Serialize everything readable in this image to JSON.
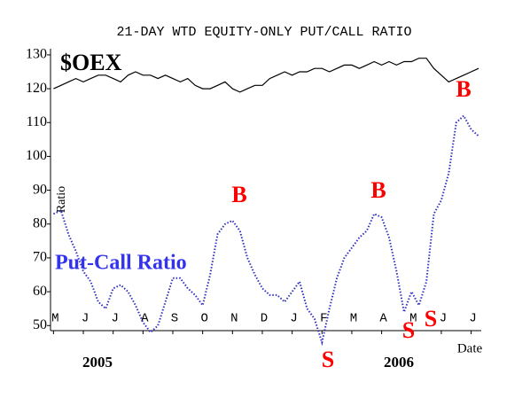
{
  "chart_data": {
    "type": "line",
    "title": "21-DAY WTD EQUITY-ONLY PUT/CALL RATIO",
    "ylabel": "Ratio",
    "xlabel": "Date",
    "x": [
      0,
      0.25,
      0.5,
      0.75,
      1,
      1.25,
      1.5,
      1.75,
      2,
      2.25,
      2.5,
      2.75,
      3,
      3.25,
      3.5,
      3.75,
      4,
      4.25,
      4.5,
      4.75,
      5,
      5.25,
      5.5,
      5.75,
      6,
      6.25,
      6.5,
      6.75,
      7,
      7.25,
      7.5,
      7.75,
      8,
      8.25,
      8.5,
      8.75,
      9,
      9.25,
      9.5,
      9.75,
      10,
      10.25,
      10.5,
      10.75,
      11,
      11.25,
      11.5,
      11.75,
      12,
      12.25,
      12.5,
      12.75,
      13,
      13.25,
      13.5,
      13.75,
      14,
      14.25
    ],
    "xlim": [
      -0.1,
      14.25
    ],
    "xticks": [
      {
        "value": 0,
        "label": "M"
      },
      {
        "value": 1,
        "label": "J"
      },
      {
        "value": 2,
        "label": "J"
      },
      {
        "value": 3,
        "label": "A"
      },
      {
        "value": 4,
        "label": "S"
      },
      {
        "value": 5,
        "label": "O"
      },
      {
        "value": 6,
        "label": "N"
      },
      {
        "value": 7,
        "label": "D"
      },
      {
        "value": 8,
        "label": "J"
      },
      {
        "value": 9,
        "label": "F"
      },
      {
        "value": 10,
        "label": "M"
      },
      {
        "value": 11,
        "label": "A"
      },
      {
        "value": 12,
        "label": "M"
      },
      {
        "value": 13,
        "label": "J"
      },
      {
        "value": 14,
        "label": "J"
      }
    ],
    "ylim": [
      48.5,
      130.5
    ],
    "yticks": [
      50,
      60,
      70,
      80,
      90,
      100,
      110,
      120,
      130
    ],
    "series": [
      {
        "name": "$OEX",
        "color": "#000000",
        "style": "solid",
        "values": [
          120,
          121,
          122,
          123,
          122,
          123,
          124,
          124,
          123,
          122,
          124,
          125,
          124,
          124,
          123,
          124,
          123,
          122,
          123,
          121,
          120,
          120,
          121,
          122,
          120,
          119,
          120,
          121,
          121,
          123,
          124,
          125,
          124,
          125,
          125,
          126,
          126,
          125,
          126,
          127,
          127,
          126,
          127,
          128,
          127,
          128,
          127,
          128,
          128,
          129,
          129,
          126,
          124,
          122,
          123,
          124,
          125,
          126
        ]
      },
      {
        "name": "Put-Call Ratio",
        "color": "#3030c0",
        "style": "dotted",
        "values": [
          83,
          84,
          77,
          72,
          66,
          63,
          57,
          55,
          61,
          62,
          60,
          56,
          51,
          48,
          50,
          57,
          64,
          64,
          61,
          59,
          56,
          65,
          77,
          80,
          81,
          78,
          70,
          65,
          61,
          59,
          59,
          57,
          60,
          63,
          55,
          52,
          45,
          55,
          64,
          70,
          73,
          76,
          78,
          83,
          82,
          76,
          66,
          54,
          60,
          56,
          63,
          83,
          87,
          95,
          110,
          112,
          108,
          106
        ]
      }
    ],
    "annotations": [
      {
        "text": "B",
        "color": "#ff0000"
      },
      {
        "text": "B",
        "color": "#ff0000"
      },
      {
        "text": "B",
        "color": "#ff0000"
      },
      {
        "text": "S",
        "color": "#ff0000"
      },
      {
        "text": "S",
        "color": "#ff0000"
      },
      {
        "text": "S",
        "color": "#ff0000"
      },
      {
        "text": "2005",
        "color": "#000000"
      },
      {
        "text": "2006",
        "color": "#000000"
      }
    ]
  }
}
